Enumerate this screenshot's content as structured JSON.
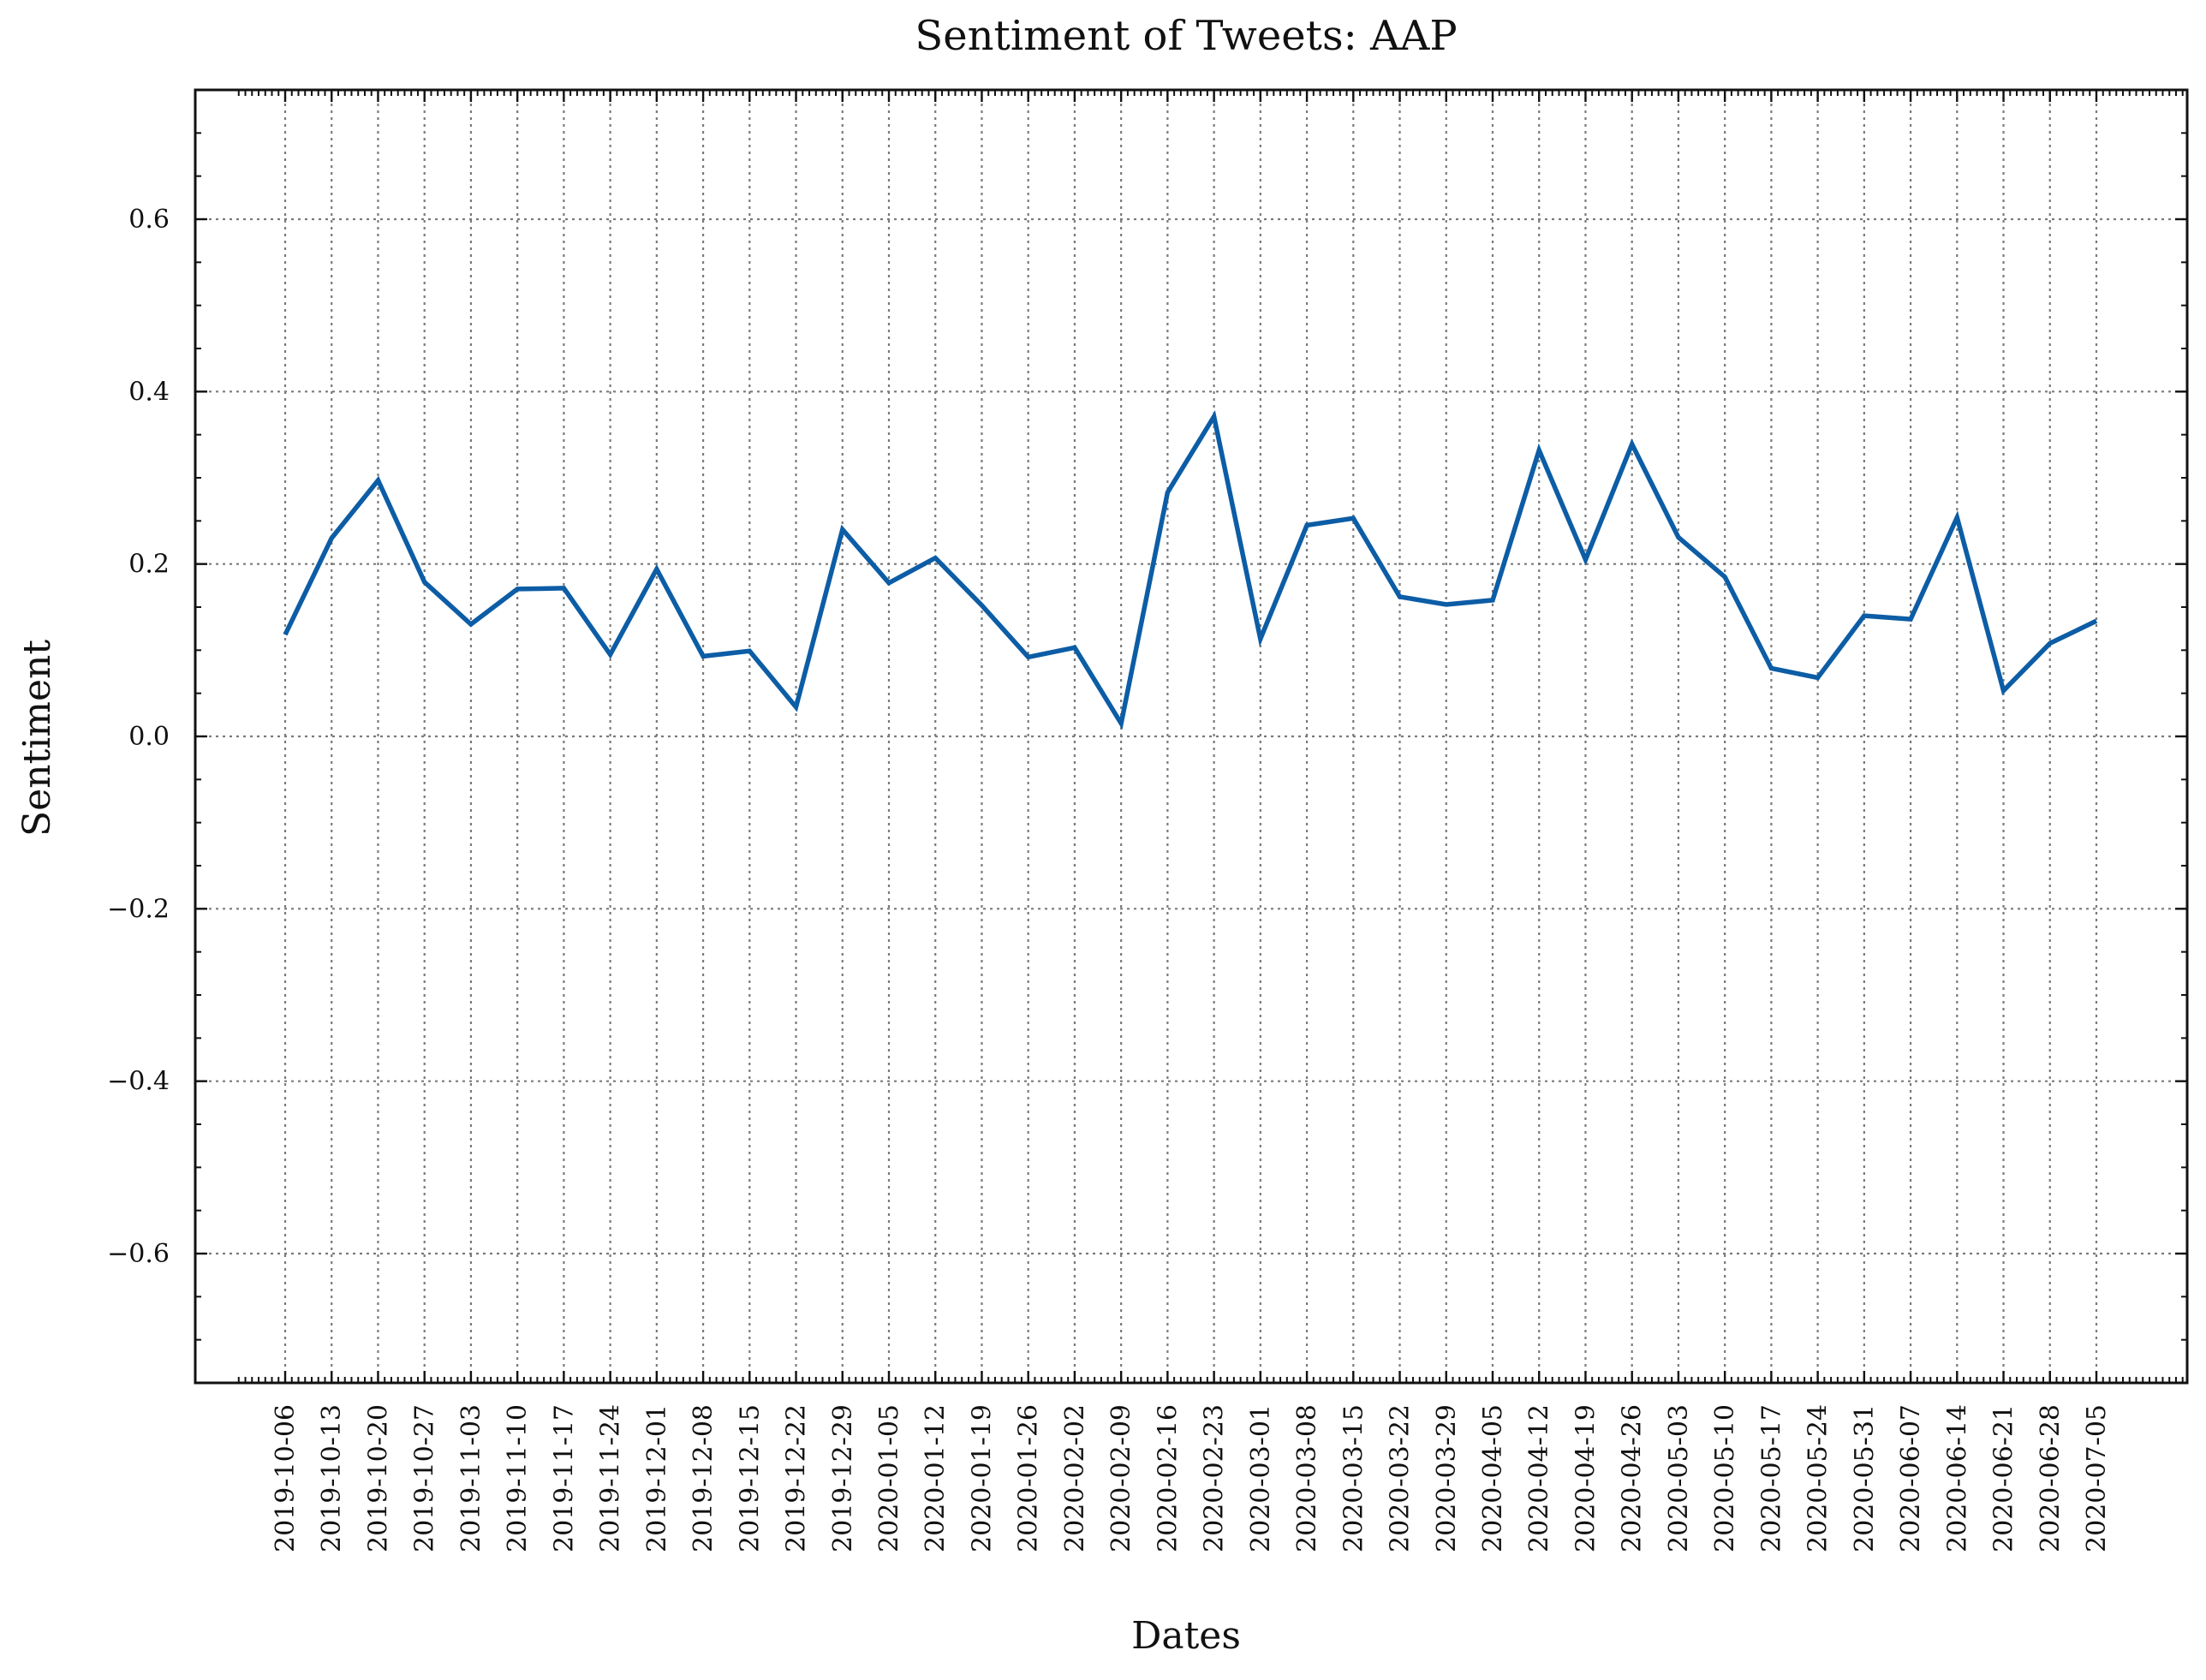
{
  "chart_data": {
    "type": "line",
    "title": "Sentiment of Tweets: AAP",
    "xlabel": "Dates",
    "ylabel": "Sentiment",
    "ylim": [
      -0.75,
      0.75
    ],
    "yticks": [
      -0.6,
      -0.4,
      -0.2,
      0.0,
      0.2,
      0.4,
      0.6
    ],
    "ytick_labels": [
      "−0.6",
      "−0.4",
      "−0.2",
      "0.0",
      "0.2",
      "0.4",
      "0.6"
    ],
    "grid": true,
    "color": "#0C5DA5",
    "x": [
      "2019-10-06",
      "2019-10-13",
      "2019-10-20",
      "2019-10-27",
      "2019-11-03",
      "2019-11-10",
      "2019-11-17",
      "2019-11-24",
      "2019-12-01",
      "2019-12-08",
      "2019-12-15",
      "2019-12-22",
      "2019-12-29",
      "2020-01-05",
      "2020-01-12",
      "2020-01-19",
      "2020-01-26",
      "2020-02-02",
      "2020-02-09",
      "2020-02-16",
      "2020-02-23",
      "2020-03-01",
      "2020-03-08",
      "2020-03-15",
      "2020-03-22",
      "2020-03-29",
      "2020-04-05",
      "2020-04-12",
      "2020-04-19",
      "2020-04-26",
      "2020-05-03",
      "2020-05-10",
      "2020-05-17",
      "2020-05-24",
      "2020-05-31",
      "2020-06-07",
      "2020-06-14",
      "2020-06-21",
      "2020-06-28",
      "2020-07-05"
    ],
    "series": [
      {
        "values": [
          0.118,
          0.23,
          0.297,
          0.179,
          0.13,
          0.171,
          0.172,
          0.095,
          0.194,
          0.093,
          0.099,
          0.034,
          0.24,
          0.178,
          0.207,
          0.152,
          0.092,
          0.103,
          0.015,
          0.283,
          0.371,
          0.113,
          0.245,
          0.253,
          0.162,
          0.153,
          0.158,
          0.332,
          0.205,
          0.339,
          0.231,
          0.185,
          0.079,
          0.068,
          0.14,
          0.136,
          0.254,
          0.053,
          0.108,
          0.134
        ]
      }
    ]
  }
}
